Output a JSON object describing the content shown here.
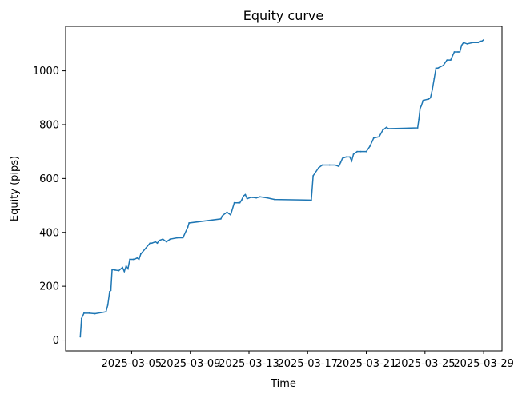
{
  "chart_data": {
    "type": "line",
    "title": "Equity curve",
    "xlabel": "Time",
    "ylabel": "Equity (pips)",
    "grid": false,
    "legend": "none",
    "color": "#1f77b4",
    "xlim": [
      "2025-02-28T12:00",
      "2025-03-30T06:00"
    ],
    "ylim": [
      -40,
      1165
    ],
    "xticks": [
      "2025-03-05",
      "2025-03-09",
      "2025-03-13",
      "2025-03-17",
      "2025-03-21",
      "2025-03-25",
      "2025-03-29"
    ],
    "yticks": [
      0,
      200,
      400,
      600,
      800,
      1000
    ],
    "series": [
      {
        "x": [
          "2025-03-01T12:00",
          "2025-03-01T13:00",
          "2025-03-01T14:00",
          "2025-03-01T16:00",
          "2025-03-01T18:00",
          "2025-03-02T03:00",
          "2025-03-02T12:00",
          "2025-03-03T06:00",
          "2025-03-03T09:00",
          "2025-03-03T12:00",
          "2025-03-03T14:00",
          "2025-03-03T16:00",
          "2025-03-03T18:00",
          "2025-03-03T21:00",
          "2025-03-04T03:00",
          "2025-03-04T09:00",
          "2025-03-04T12:00",
          "2025-03-04T15:00",
          "2025-03-04T18:00",
          "2025-03-04T21:00",
          "2025-03-05T03:00",
          "2025-03-05T06:00",
          "2025-03-05T09:00",
          "2025-03-05T12:00",
          "2025-03-05T15:00",
          "2025-03-06T06:00",
          "2025-03-06T09:00",
          "2025-03-06T15:00",
          "2025-03-06T18:00",
          "2025-03-06T21:00",
          "2025-03-07T03:00",
          "2025-03-07T09:00",
          "2025-03-07T12:00",
          "2025-03-07T15:00",
          "2025-03-08T03:00",
          "2025-03-08T12:00",
          "2025-03-08T20:00",
          "2025-03-08T22:00",
          "2025-03-11T02:00",
          "2025-03-11T04:00",
          "2025-03-11T06:00",
          "2025-03-11T09:00",
          "2025-03-11T12:00",
          "2025-03-11T15:00",
          "2025-03-11T18:00",
          "2025-03-12T00:00",
          "2025-03-12T06:00",
          "2025-03-12T09:00",
          "2025-03-12T12:00",
          "2025-03-12T15:00",
          "2025-03-12T18:00",
          "2025-03-12T21:00",
          "2025-03-13T03:00",
          "2025-03-13T06:00",
          "2025-03-13T12:00",
          "2025-03-13T18:00",
          "2025-03-14T06:00",
          "2025-03-14T12:00",
          "2025-03-14T18:00",
          "2025-03-17T06:00",
          "2025-03-17T09:00",
          "2025-03-17T12:00",
          "2025-03-17T18:00",
          "2025-03-18T00:00",
          "2025-03-18T12:00",
          "2025-03-18T21:00",
          "2025-03-19T03:00",
          "2025-03-19T06:00",
          "2025-03-19T09:00",
          "2025-03-19T15:00",
          "2025-03-19T21:00",
          "2025-03-20T00:00",
          "2025-03-20T03:00",
          "2025-03-20T09:00",
          "2025-03-20T15:00",
          "2025-03-21T00:00",
          "2025-03-21T06:00",
          "2025-03-21T12:00",
          "2025-03-21T15:00",
          "2025-03-21T21:00",
          "2025-03-22T03:00",
          "2025-03-22T09:00",
          "2025-03-22T12:00",
          "2025-03-24T12:00",
          "2025-03-24T14:00",
          "2025-03-24T16:00",
          "2025-03-24T18:00",
          "2025-03-24T21:00",
          "2025-03-25T06:00",
          "2025-03-25T09:00",
          "2025-03-25T12:00",
          "2025-03-25T15:00",
          "2025-03-25T18:00",
          "2025-03-25T21:00",
          "2025-03-26T06:00",
          "2025-03-26T12:00",
          "2025-03-26T18:00",
          "2025-03-27T00:00",
          "2025-03-27T06:00",
          "2025-03-27T09:00",
          "2025-03-27T12:00",
          "2025-03-27T15:00",
          "2025-03-27T21:00",
          "2025-03-28T06:00",
          "2025-03-28T15:00",
          "2025-03-28T18:00",
          "2025-03-28T21:00",
          "2025-03-29T00:00"
        ],
        "y": [
          12,
          45,
          80,
          90,
          100,
          100,
          98,
          105,
          130,
          180,
          185,
          260,
          262,
          260,
          258,
          270,
          255,
          275,
          265,
          300,
          300,
          302,
          305,
          300,
          320,
          360,
          360,
          365,
          360,
          370,
          375,
          365,
          370,
          375,
          380,
          380,
          420,
          435,
          450,
          460,
          465,
          470,
          475,
          470,
          465,
          510,
          510,
          510,
          520,
          535,
          540,
          525,
          530,
          530,
          528,
          532,
          528,
          525,
          522,
          520,
          610,
          620,
          640,
          650,
          650,
          650,
          645,
          660,
          675,
          680,
          680,
          665,
          690,
          700,
          700,
          700,
          720,
          750,
          752,
          755,
          780,
          790,
          785,
          788,
          820,
          860,
          870,
          890,
          895,
          900,
          930,
          970,
          1010,
          1010,
          1020,
          1040,
          1040,
          1070,
          1070,
          1070,
          1095,
          1105,
          1100,
          1105,
          1105,
          1110,
          1110,
          1115
        ]
      }
    ]
  }
}
